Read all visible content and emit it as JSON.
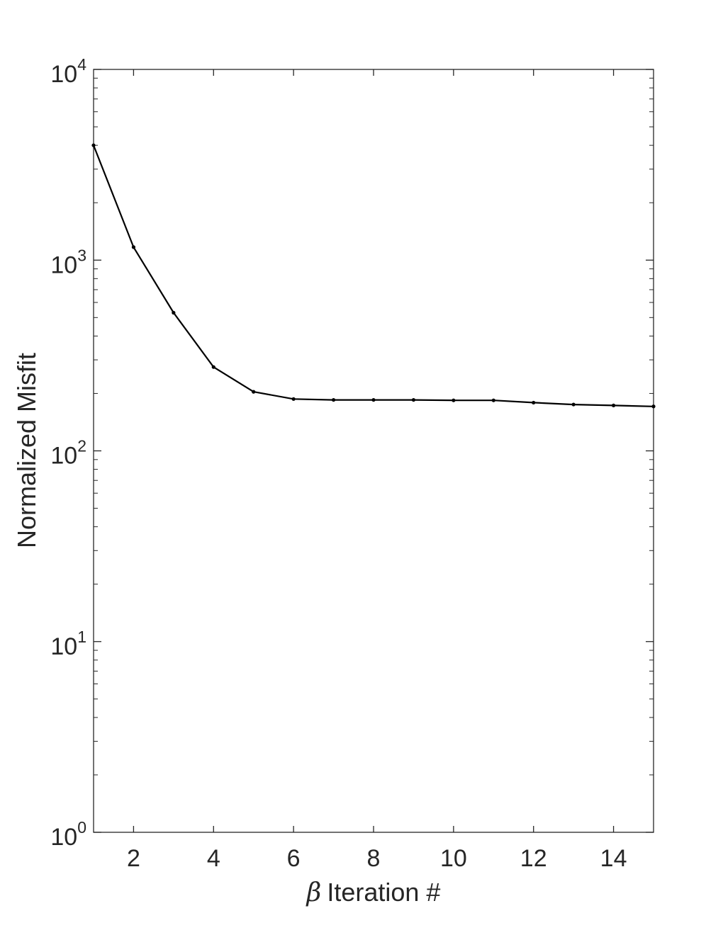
{
  "chart_data": {
    "type": "line",
    "title": "",
    "xlabel": {
      "symbol": "β",
      "text": "Iteration #"
    },
    "ylabel": "Normalized Misfit",
    "xlim": [
      1,
      15
    ],
    "ylim": [
      1,
      10000
    ],
    "yscale": "log",
    "grid": false,
    "legend": "none",
    "x_ticks": [
      2,
      4,
      6,
      8,
      10,
      12,
      14
    ],
    "x_tick_labels": [
      "2",
      "4",
      "6",
      "8",
      "10",
      "12",
      "14"
    ],
    "y_ticks": [
      1,
      10,
      100,
      1000,
      10000
    ],
    "y_tick_labels": [
      {
        "base": "10",
        "exp": "0"
      },
      {
        "base": "10",
        "exp": "1"
      },
      {
        "base": "10",
        "exp": "2"
      },
      {
        "base": "10",
        "exp": "3"
      },
      {
        "base": "10",
        "exp": "4"
      }
    ],
    "series": [
      {
        "x": [
          1,
          2,
          3,
          4,
          5,
          6,
          7,
          8,
          9,
          10,
          11,
          12,
          13,
          14,
          15
        ],
        "y": [
          4000,
          1170,
          530,
          275,
          204,
          187,
          185,
          185,
          185,
          184,
          184,
          179,
          175,
          173,
          171
        ],
        "color": "#000000",
        "marker": "dot"
      }
    ]
  }
}
